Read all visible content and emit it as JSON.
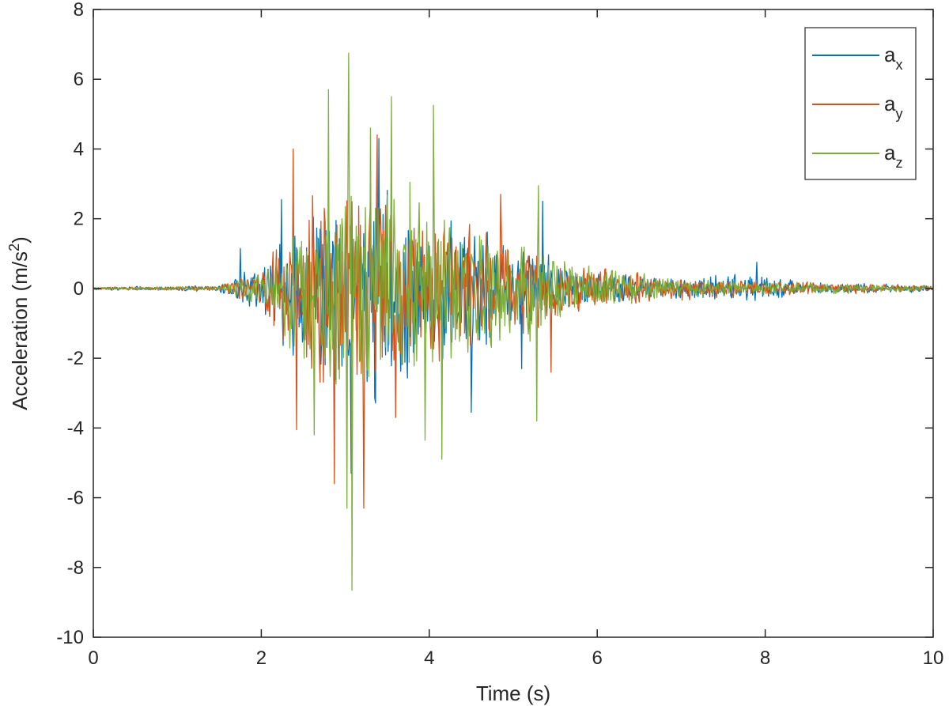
{
  "chart_data": {
    "type": "line",
    "xlabel": "Time (s)",
    "ylabel": {
      "prefix": "Acceleration (m/s",
      "sup": "2",
      "suffix": ")"
    },
    "xlim": [
      0,
      10
    ],
    "ylim": [
      -10,
      8
    ],
    "xticks": [
      0,
      2,
      4,
      6,
      8,
      10
    ],
    "yticks": [
      8,
      6,
      4,
      2,
      0,
      -2,
      -4,
      -6,
      -8,
      -10
    ],
    "grid": false,
    "legend_position": "top-right",
    "time_step": 0.01,
    "series": [
      {
        "name": "a",
        "sub": "x",
        "color": "#0072BD",
        "envelope": [
          [
            0,
            0.06
          ],
          [
            1.5,
            0.1
          ],
          [
            1.7,
            0.6
          ],
          [
            2.0,
            0.9
          ],
          [
            2.2,
            2.0
          ],
          [
            2.5,
            3.2
          ],
          [
            3.0,
            4.2
          ],
          [
            3.5,
            3.8
          ],
          [
            4.0,
            3.0
          ],
          [
            4.5,
            2.4
          ],
          [
            5.0,
            2.0
          ],
          [
            5.3,
            1.7
          ],
          [
            5.6,
            1.0
          ],
          [
            6.0,
            0.6
          ],
          [
            7.0,
            0.4
          ],
          [
            7.9,
            0.55
          ],
          [
            8.5,
            0.25
          ],
          [
            9.0,
            0.2
          ],
          [
            10,
            0.12
          ]
        ],
        "peaks": [
          [
            1.75,
            1.15
          ],
          [
            2.24,
            2.55
          ],
          [
            3.07,
            -5.3
          ],
          [
            3.4,
            4.3
          ],
          [
            4.5,
            -3.55
          ],
          [
            5.1,
            -2.3
          ],
          [
            5.35,
            2.5
          ],
          [
            7.9,
            0.75
          ]
        ],
        "seed": 11
      },
      {
        "name": "a",
        "sub": "y",
        "color": "#D95319",
        "envelope": [
          [
            0,
            0.05
          ],
          [
            1.5,
            0.1
          ],
          [
            1.8,
            0.5
          ],
          [
            2.0,
            0.7
          ],
          [
            2.3,
            2.6
          ],
          [
            2.6,
            3.4
          ],
          [
            3.0,
            4.2
          ],
          [
            3.5,
            3.8
          ],
          [
            4.0,
            2.8
          ],
          [
            4.5,
            2.4
          ],
          [
            5.0,
            1.9
          ],
          [
            5.5,
            1.2
          ],
          [
            6.0,
            0.7
          ],
          [
            7.0,
            0.45
          ],
          [
            8.0,
            0.3
          ],
          [
            9.0,
            0.2
          ],
          [
            10,
            0.1
          ]
        ],
        "peaks": [
          [
            2.38,
            4.0
          ],
          [
            2.42,
            -4.05
          ],
          [
            2.87,
            -5.6
          ],
          [
            3.22,
            -6.3
          ],
          [
            3.38,
            4.4
          ],
          [
            3.6,
            -3.7
          ],
          [
            4.85,
            2.7
          ],
          [
            5.45,
            -2.4
          ]
        ],
        "seed": 23
      },
      {
        "name": "a",
        "sub": "z",
        "color": "#77AC30",
        "envelope": [
          [
            0,
            0.05
          ],
          [
            1.5,
            0.08
          ],
          [
            1.8,
            0.5
          ],
          [
            2.1,
            0.7
          ],
          [
            2.4,
            2.8
          ],
          [
            2.8,
            4.4
          ],
          [
            3.0,
            5.0
          ],
          [
            3.4,
            4.4
          ],
          [
            3.8,
            3.6
          ],
          [
            4.2,
            3.0
          ],
          [
            4.6,
            2.4
          ],
          [
            5.0,
            2.1
          ],
          [
            5.3,
            1.9
          ],
          [
            5.6,
            1.1
          ],
          [
            6.0,
            0.8
          ],
          [
            7.0,
            0.4
          ],
          [
            8.0,
            0.25
          ],
          [
            9.0,
            0.2
          ],
          [
            10,
            0.1
          ]
        ],
        "peaks": [
          [
            2.63,
            -4.2
          ],
          [
            2.8,
            5.7
          ],
          [
            3.02,
            -6.3
          ],
          [
            3.04,
            6.75
          ],
          [
            3.08,
            -8.65
          ],
          [
            3.3,
            4.6
          ],
          [
            3.55,
            5.5
          ],
          [
            3.95,
            -4.35
          ],
          [
            4.05,
            5.25
          ],
          [
            4.15,
            -4.9
          ],
          [
            5.28,
            -3.8
          ],
          [
            5.3,
            2.95
          ]
        ],
        "seed": 37
      }
    ]
  }
}
